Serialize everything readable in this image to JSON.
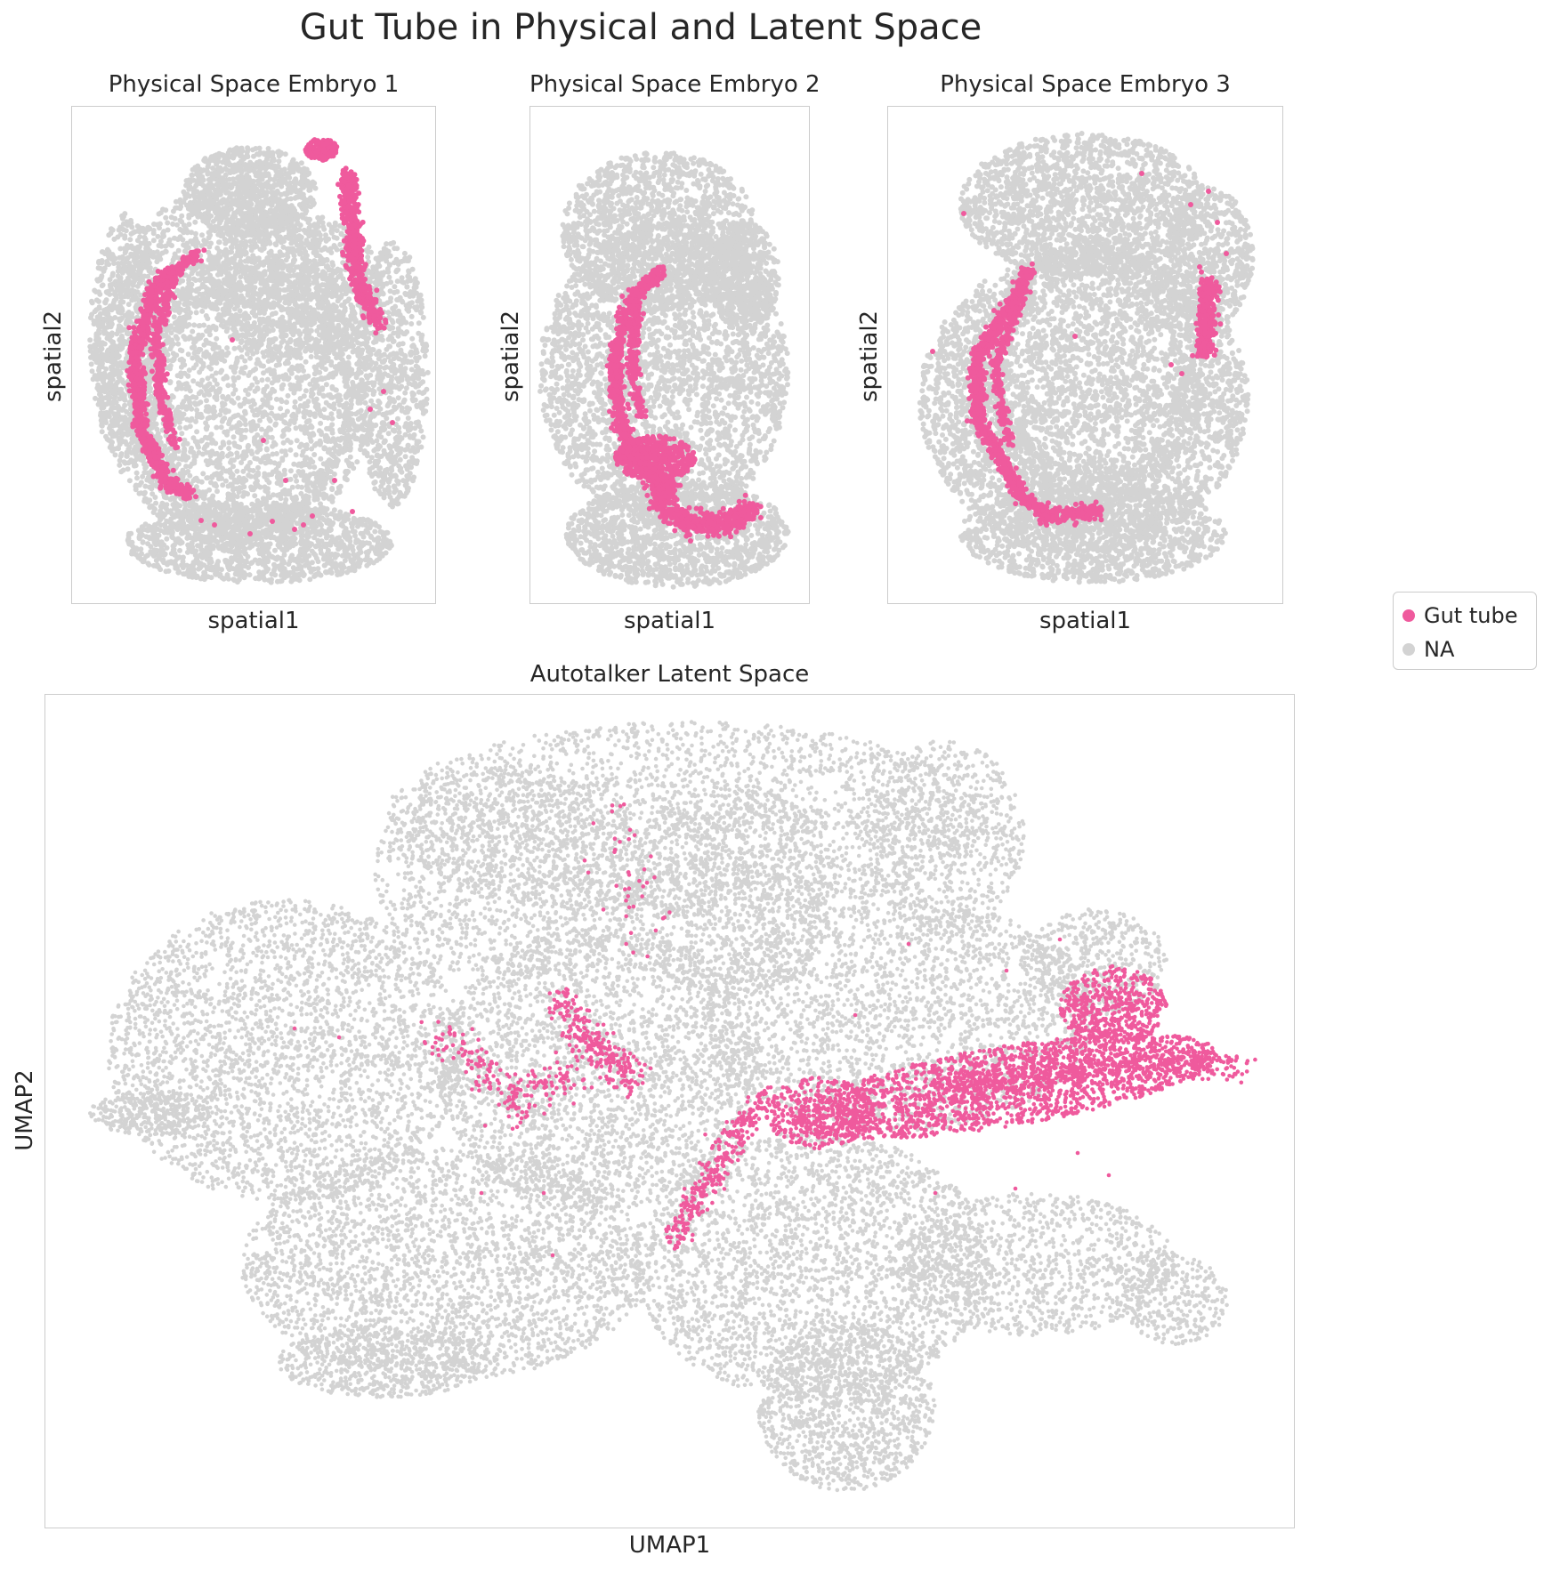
{
  "title": "Gut Tube in Physical and Latent Space",
  "colors": {
    "gut_tube": "#ef5a9d",
    "na": "#d3d3d3"
  },
  "legend": {
    "items": [
      {
        "label": "Gut tube",
        "color": "#ef5a9d"
      },
      {
        "label": "NA",
        "color": "#d3d3d3"
      }
    ]
  },
  "panels": {
    "embryo1": {
      "title": "Physical Space Embryo 1",
      "xlabel": "spatial1",
      "ylabel": "spatial2"
    },
    "embryo2": {
      "title": "Physical Space Embryo 2",
      "xlabel": "spatial1",
      "ylabel": "spatial2"
    },
    "embryo3": {
      "title": "Physical Space Embryo 3",
      "xlabel": "spatial1",
      "ylabel": "spatial2"
    },
    "latent": {
      "title": "Autotalker Latent Space",
      "xlabel": "UMAP1",
      "ylabel": "UMAP2"
    }
  },
  "chart_data": [
    {
      "type": "scatter",
      "title": "Physical Space Embryo 1",
      "xlabel": "spatial1",
      "ylabel": "spatial2",
      "xticks": false,
      "yticks": false,
      "grid": false,
      "legend_placement": "right",
      "series": [
        {
          "name": "NA",
          "color": "#d3d3d3"
        },
        {
          "name": "Gut tube",
          "color": "#ef5a9d"
        }
      ]
    },
    {
      "type": "scatter",
      "title": "Physical Space Embryo 2",
      "xlabel": "spatial1",
      "ylabel": "spatial2",
      "xticks": false,
      "yticks": false,
      "grid": false,
      "series": [
        {
          "name": "NA",
          "color": "#d3d3d3"
        },
        {
          "name": "Gut tube",
          "color": "#ef5a9d"
        }
      ]
    },
    {
      "type": "scatter",
      "title": "Physical Space Embryo 3",
      "xlabel": "spatial1",
      "ylabel": "spatial2",
      "xticks": false,
      "yticks": false,
      "grid": false,
      "series": [
        {
          "name": "NA",
          "color": "#d3d3d3"
        },
        {
          "name": "Gut tube",
          "color": "#ef5a9d"
        }
      ]
    },
    {
      "type": "scatter",
      "title": "Autotalker Latent Space",
      "xlabel": "UMAP1",
      "ylabel": "UMAP2",
      "xticks": false,
      "yticks": false,
      "grid": false,
      "series": [
        {
          "name": "NA",
          "color": "#d3d3d3"
        },
        {
          "name": "Gut tube",
          "color": "#ef5a9d"
        }
      ]
    }
  ]
}
